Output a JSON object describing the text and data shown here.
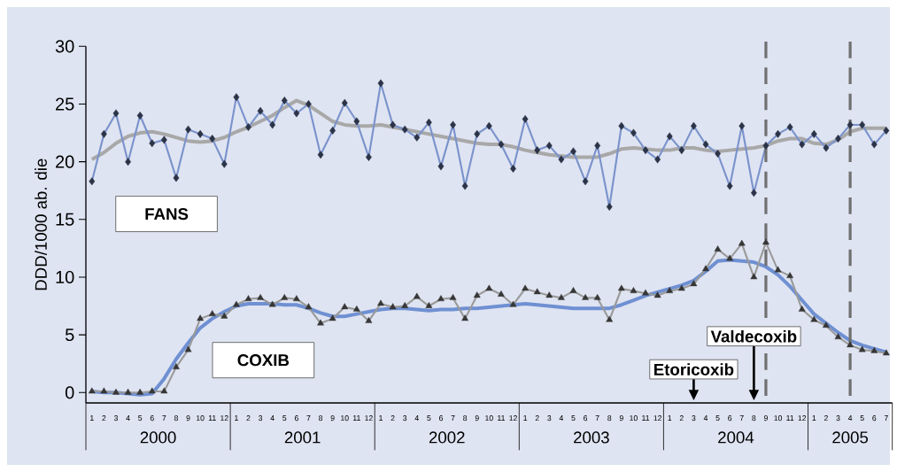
{
  "chart_data": {
    "type": "line",
    "ylabel": "DDD/1000 ab. die",
    "x": [
      "2000-01",
      "2000-02",
      "2000-03",
      "2000-04",
      "2000-05",
      "2000-06",
      "2000-07",
      "2000-08",
      "2000-09",
      "2000-10",
      "2000-11",
      "2000-12",
      "2001-01",
      "2001-02",
      "2001-03",
      "2001-04",
      "2001-05",
      "2001-06",
      "2001-07",
      "2001-08",
      "2001-09",
      "2001-10",
      "2001-11",
      "2001-12",
      "2002-01",
      "2002-02",
      "2002-03",
      "2002-04",
      "2002-05",
      "2002-06",
      "2002-07",
      "2002-08",
      "2002-09",
      "2002-10",
      "2002-11",
      "2002-12",
      "2003-01",
      "2003-02",
      "2003-03",
      "2003-04",
      "2003-05",
      "2003-06",
      "2003-07",
      "2003-08",
      "2003-09",
      "2003-10",
      "2003-11",
      "2003-12",
      "2004-01",
      "2004-02",
      "2004-03",
      "2004-04",
      "2004-05",
      "2004-06",
      "2004-07",
      "2004-08",
      "2004-09",
      "2004-10",
      "2004-11",
      "2004-12",
      "2005-01",
      "2005-02",
      "2005-03",
      "2005-04",
      "2005-05",
      "2005-06",
      "2005-07"
    ],
    "series": [
      {
        "color": "#a8a8a8",
        "marker": "none",
        "values": [
          20.2,
          20.8,
          21.6,
          22.2,
          22.5,
          22.6,
          22.4,
          22.1,
          21.8,
          21.7,
          21.8,
          22.1,
          22.6,
          23.0,
          23.5,
          24.0,
          24.7,
          25.3,
          24.9,
          24.2,
          23.5,
          23.2,
          23.1,
          23.1,
          23.2,
          23.0,
          22.8,
          22.6,
          22.4,
          22.2,
          22.0,
          21.8,
          21.6,
          21.5,
          21.5,
          21.3,
          21.0,
          20.8,
          20.6,
          20.5,
          20.4,
          20.4,
          20.4,
          20.7,
          21.1,
          21.2,
          21.1,
          21.0,
          21.0,
          21.2,
          21.2,
          21.0,
          20.9,
          21.0,
          21.1,
          21.2,
          21.4,
          21.8,
          22.0,
          22.0,
          21.6,
          21.5,
          21.9,
          22.6,
          22.9,
          22.9,
          22.9
        ]
      },
      {
        "color": "#6f90d2",
        "marker": "none",
        "values": [
          0.1,
          0.0,
          0,
          -0.1,
          -0.2,
          -0.1,
          1.2,
          2.9,
          4.3,
          5.6,
          6.4,
          7.0,
          7.5,
          7.7,
          7.7,
          7.7,
          7.6,
          7.6,
          7.3,
          6.9,
          6.6,
          6.6,
          6.8,
          7.0,
          7.2,
          7.3,
          7.3,
          7.2,
          7.1,
          7.2,
          7.2,
          7.3,
          7.3,
          7.4,
          7.5,
          7.6,
          7.7,
          7.6,
          7.5,
          7.4,
          7.3,
          7.3,
          7.3,
          7.3,
          7.6,
          8.0,
          8.4,
          8.7,
          9.0,
          9.3,
          9.7,
          10.5,
          11.4,
          11.5,
          11.4,
          11.3,
          10.9,
          10.2,
          9.2,
          8.0,
          6.8,
          6.0,
          5.2,
          4.5,
          4.1,
          3.8,
          3.5
        ]
      },
      {
        "name": "FANS",
        "color": "#7b93cc",
        "marker": "diamond",
        "values": [
          18.3,
          22.4,
          24.2,
          20.0,
          24.0,
          21.6,
          21.9,
          18.6,
          22.8,
          22.4,
          22.0,
          19.8,
          25.6,
          23.0,
          24.4,
          23.2,
          25.3,
          24.2,
          25.0,
          20.6,
          22.7,
          25.1,
          23.5,
          20.4,
          26.8,
          23.2,
          22.8,
          22.1,
          23.4,
          19.6,
          23.2,
          17.9,
          22.4,
          23.1,
          21.5,
          19.4,
          23.7,
          21.0,
          21.4,
          20.2,
          20.9,
          18.3,
          21.4,
          16.1,
          23.1,
          22.5,
          21.0,
          20.2,
          22.2,
          21.0,
          23.1,
          21.5,
          20.7,
          17.9,
          23.1,
          17.3,
          21.4,
          22.4,
          23.0,
          21.5,
          22.4,
          21.2,
          22.0,
          23.2,
          23.2,
          21.5,
          22.7
        ]
      },
      {
        "name": "COXIB",
        "color": "#9a9a9a",
        "marker": "triangle",
        "values": [
          0.1,
          0.1,
          0.0,
          0.0,
          0.0,
          0.1,
          0.1,
          2.2,
          3.7,
          6.4,
          6.8,
          6.6,
          7.6,
          8.1,
          8.2,
          7.6,
          8.2,
          8.1,
          7.4,
          6.0,
          6.4,
          7.4,
          7.2,
          6.2,
          7.7,
          7.4,
          7.5,
          8.3,
          7.5,
          8.1,
          8.2,
          6.4,
          8.4,
          9.0,
          8.5,
          7.6,
          9.0,
          8.7,
          8.4,
          8.2,
          8.8,
          8.2,
          8.2,
          6.3,
          9.0,
          8.8,
          8.6,
          8.4,
          8.8,
          9.0,
          9.4,
          10.7,
          12.4,
          11.6,
          12.9,
          10.0,
          13.0,
          10.6,
          10.1,
          7.2,
          6.3,
          5.8,
          4.8,
          4.1,
          3.7,
          3.6,
          3.4
        ]
      }
    ],
    "xlim": [
      "1999-12-16",
      "2005-07-16"
    ],
    "ylim": [
      -0.9,
      30
    ],
    "yticks": [
      0,
      5,
      10,
      15,
      20,
      25,
      30
    ],
    "xticks": [
      {
        "value": "2000-01",
        "label": "1"
      },
      {
        "value": "2000-02",
        "label": "2"
      },
      {
        "value": "2000-03",
        "label": "3"
      },
      {
        "value": "2000-04",
        "label": "4"
      },
      {
        "value": "2000-05",
        "label": "5"
      },
      {
        "value": "2000-06",
        "label": "6"
      },
      {
        "value": "2000-07",
        "label": "7"
      },
      {
        "value": "2000-08",
        "label": "8"
      },
      {
        "value": "2000-09",
        "label": "9"
      },
      {
        "value": "2000-10",
        "label": "10"
      },
      {
        "value": "2000-11",
        "label": "11"
      },
      {
        "value": "2000-12",
        "label": "12"
      },
      {
        "value": "2001-01",
        "label": "1"
      },
      {
        "value": "2001-02",
        "label": "2"
      },
      {
        "value": "2001-03",
        "label": "3"
      },
      {
        "value": "2001-04",
        "label": "4"
      },
      {
        "value": "2001-05",
        "label": "5"
      },
      {
        "value": "2001-06",
        "label": "6"
      },
      {
        "value": "2001-07",
        "label": "7"
      },
      {
        "value": "2001-08",
        "label": "8"
      },
      {
        "value": "2001-09",
        "label": "9"
      },
      {
        "value": "2001-10",
        "label": "10"
      },
      {
        "value": "2001-11",
        "label": "11"
      },
      {
        "value": "2001-12",
        "label": "12"
      },
      {
        "value": "2002-01",
        "label": "1"
      },
      {
        "value": "2002-02",
        "label": "2"
      },
      {
        "value": "2002-03",
        "label": "3"
      },
      {
        "value": "2002-04",
        "label": "4"
      },
      {
        "value": "2002-05",
        "label": "5"
      },
      {
        "value": "2002-06",
        "label": "6"
      },
      {
        "value": "2002-07",
        "label": "7"
      },
      {
        "value": "2002-08",
        "label": "8"
      },
      {
        "value": "2002-09",
        "label": "9"
      },
      {
        "value": "2002-10",
        "label": "10"
      },
      {
        "value": "2002-11",
        "label": "11"
      },
      {
        "value": "2002-12",
        "label": "12"
      },
      {
        "value": "2003-01",
        "label": "1"
      },
      {
        "value": "2003-02",
        "label": "2"
      },
      {
        "value": "2003-03",
        "label": "3"
      },
      {
        "value": "2003-04",
        "label": "4"
      },
      {
        "value": "2003-05",
        "label": "5"
      },
      {
        "value": "2003-06",
        "label": "6"
      },
      {
        "value": "2003-07",
        "label": "7"
      },
      {
        "value": "2003-08",
        "label": "8"
      },
      {
        "value": "2003-09",
        "label": "9"
      },
      {
        "value": "2003-10",
        "label": "10"
      },
      {
        "value": "2003-11",
        "label": "11"
      },
      {
        "value": "2003-12",
        "label": "12"
      },
      {
        "value": "2004-01",
        "label": "1"
      },
      {
        "value": "2004-02",
        "label": "2"
      },
      {
        "value": "2004-03",
        "label": "3"
      },
      {
        "value": "2004-04",
        "label": "4"
      },
      {
        "value": "2004-05",
        "label": "5"
      },
      {
        "value": "2004-06",
        "label": "6"
      },
      {
        "value": "2004-07",
        "label": "7"
      },
      {
        "value": "2004-08",
        "label": "8"
      },
      {
        "value": "2004-09",
        "label": "9"
      },
      {
        "value": "2004-10",
        "label": "10"
      },
      {
        "value": "2004-11",
        "label": "11"
      },
      {
        "value": "2004-12",
        "label": "12"
      },
      {
        "value": "2005-01",
        "label": "1"
      },
      {
        "value": "2005-02",
        "label": "2"
      },
      {
        "value": "2005-03",
        "label": "3"
      },
      {
        "value": "2005-04",
        "label": "4"
      },
      {
        "value": "2005-05",
        "label": "5"
      },
      {
        "value": "2005-06",
        "label": "6"
      },
      {
        "value": "2005-07",
        "label": "7"
      }
    ],
    "ref_lines": [
      {
        "axis": "x",
        "value": "2004-09",
        "color": "#707070",
        "line_style": "dashed"
      },
      {
        "axis": "x",
        "value": "2005-04",
        "color": "#707070",
        "line_style": "dashed"
      }
    ],
    "annotations": [
      "2000",
      "2001",
      "2002",
      "2003",
      "2004",
      "2005",
      {
        "text": "Etoricoxib",
        "x": "2004-03"
      },
      {
        "text": "Valdecoxib",
        "x": "2004-08"
      }
    ],
    "grid": false
  }
}
